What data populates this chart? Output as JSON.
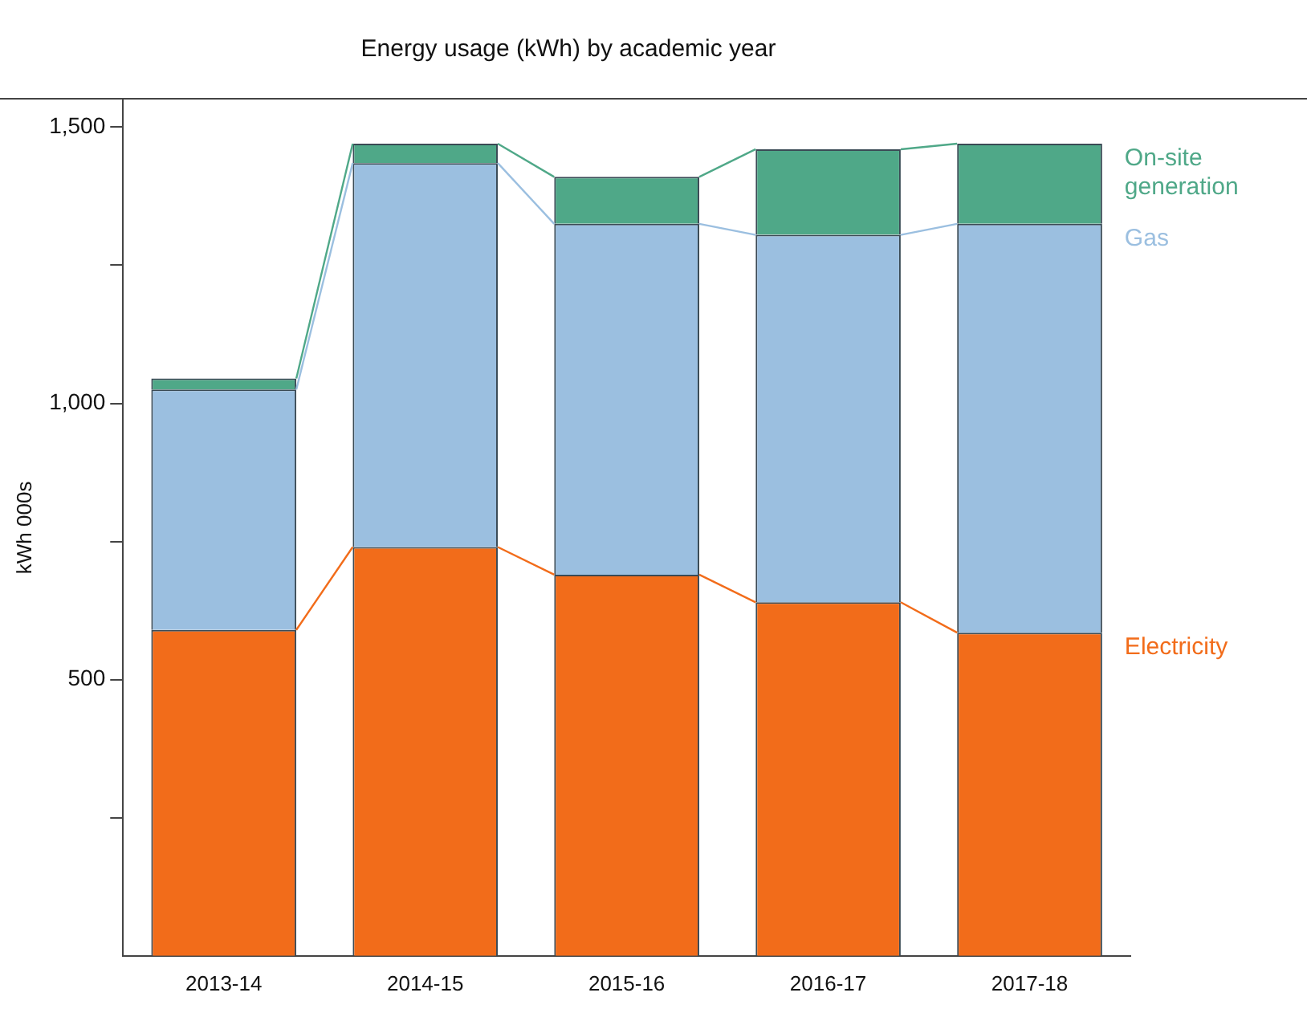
{
  "chart_data": {
    "type": "bar",
    "title": "Energy usage (kWh) by academic year",
    "ylabel": "kWh 000s",
    "categories": [
      "2013-14",
      "2014-15",
      "2015-16",
      "2016-17",
      "2017-18"
    ],
    "stacked": true,
    "series": [
      {
        "name": "Electricity",
        "color": "#f26c1a",
        "values": [
          590,
          740,
          690,
          640,
          585
        ]
      },
      {
        "name": "Gas",
        "color": "#9bbfe0",
        "values": [
          435,
          695,
          635,
          665,
          740
        ]
      },
      {
        "name": "On-site generation",
        "color": "#4fa888",
        "values": [
          20,
          35,
          85,
          155,
          145
        ]
      }
    ],
    "ylim": [
      0,
      1550
    ],
    "yticks": [
      {
        "value": 250,
        "label": null
      },
      {
        "value": 500,
        "label": "500"
      },
      {
        "value": 750,
        "label": null
      },
      {
        "value": 1000,
        "label": "1,000"
      },
      {
        "value": 1250,
        "label": null
      },
      {
        "value": 1500,
        "label": "1,500"
      }
    ],
    "grid": false
  }
}
